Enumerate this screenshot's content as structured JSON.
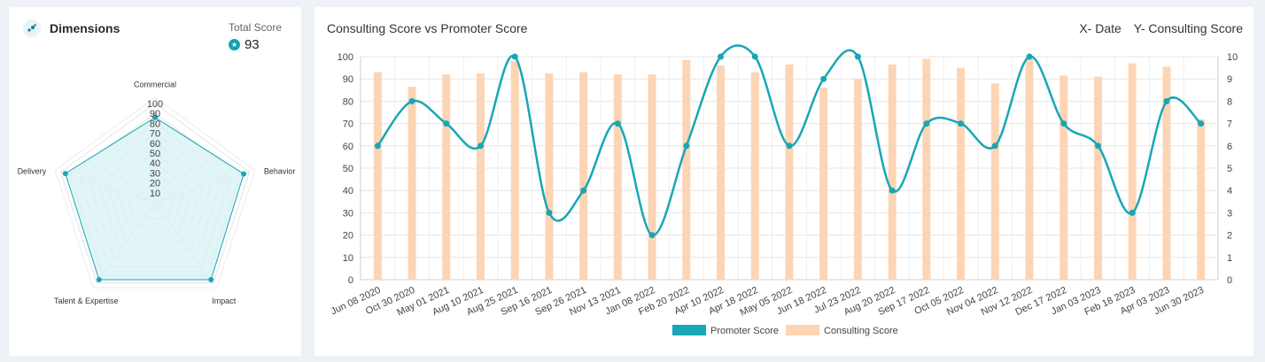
{
  "dimensions": {
    "title": "Dimensions",
    "icon": "scatter-dots-icon",
    "total_label": "Total Score",
    "total_value": "93",
    "total_icon": "star-badge-icon"
  },
  "colors": {
    "accent": "#17a7b5",
    "bar": "#fdd5b5",
    "radar_fill": "#d7f0f3",
    "grid": "#e4e4e4"
  },
  "radar": {
    "axes": [
      "Commercial",
      "Behavior",
      "Impact",
      "Talent & Expertise",
      "Delivery"
    ],
    "values": [
      86,
      94,
      96,
      96,
      95
    ],
    "ticks": [
      10,
      20,
      30,
      40,
      50,
      60,
      70,
      80,
      90,
      100
    ],
    "max": 100
  },
  "chart": {
    "title": "Consulting Score vs Promoter Score",
    "x_note": "X- Date",
    "y_note": "Y- Consulting Score"
  },
  "chart_data": {
    "type": "line",
    "categories": [
      "Jun 08 2020",
      "Oct 30 2020",
      "May 01 2021",
      "Aug 10 2021",
      "Aug 25 2021",
      "Sep 16 2021",
      "Sep 26 2021",
      "Nov 13 2021",
      "Jan 08 2022",
      "Feb 20 2022",
      "Apr 10 2022",
      "Apr 18 2022",
      "May 05 2022",
      "Jun 18 2022",
      "Jul 23 2022",
      "Aug 20 2022",
      "Sep 17 2022",
      "Oct 05 2022",
      "Nov 04 2022",
      "Nov 12 2022",
      "Dec 17 2022",
      "Jan 03 2023",
      "Feb 18 2023",
      "Apr 03 2023",
      "Jun 30 2023"
    ],
    "series": [
      {
        "name": "Promoter Score",
        "type": "line",
        "axis": "left",
        "values": [
          60,
          80,
          70,
          60,
          100,
          30,
          40,
          70,
          20,
          60,
          100,
          100,
          60,
          90,
          100,
          40,
          70,
          70,
          60,
          100,
          70,
          60,
          30,
          80,
          70
        ]
      },
      {
        "name": "Consulting Score",
        "type": "bar",
        "axis": "right",
        "values": [
          9.3,
          8.65,
          9.2,
          9.25,
          9.8,
          9.25,
          9.3,
          9.2,
          9.2,
          9.85,
          9.6,
          9.3,
          9.65,
          8.6,
          9.0,
          9.65,
          9.9,
          9.5,
          8.8,
          9.9,
          9.15,
          9.1,
          9.7,
          9.55,
          7.2
        ]
      }
    ],
    "y_left": {
      "min": 0,
      "max": 100,
      "ticks": [
        0,
        10,
        20,
        30,
        40,
        50,
        60,
        70,
        80,
        90,
        100
      ]
    },
    "y_right": {
      "min": 0,
      "max": 10,
      "ticks": [
        0,
        1,
        2,
        3,
        4,
        5,
        6,
        7,
        8,
        9,
        10
      ]
    },
    "grid": true,
    "legend_position": "bottom"
  }
}
